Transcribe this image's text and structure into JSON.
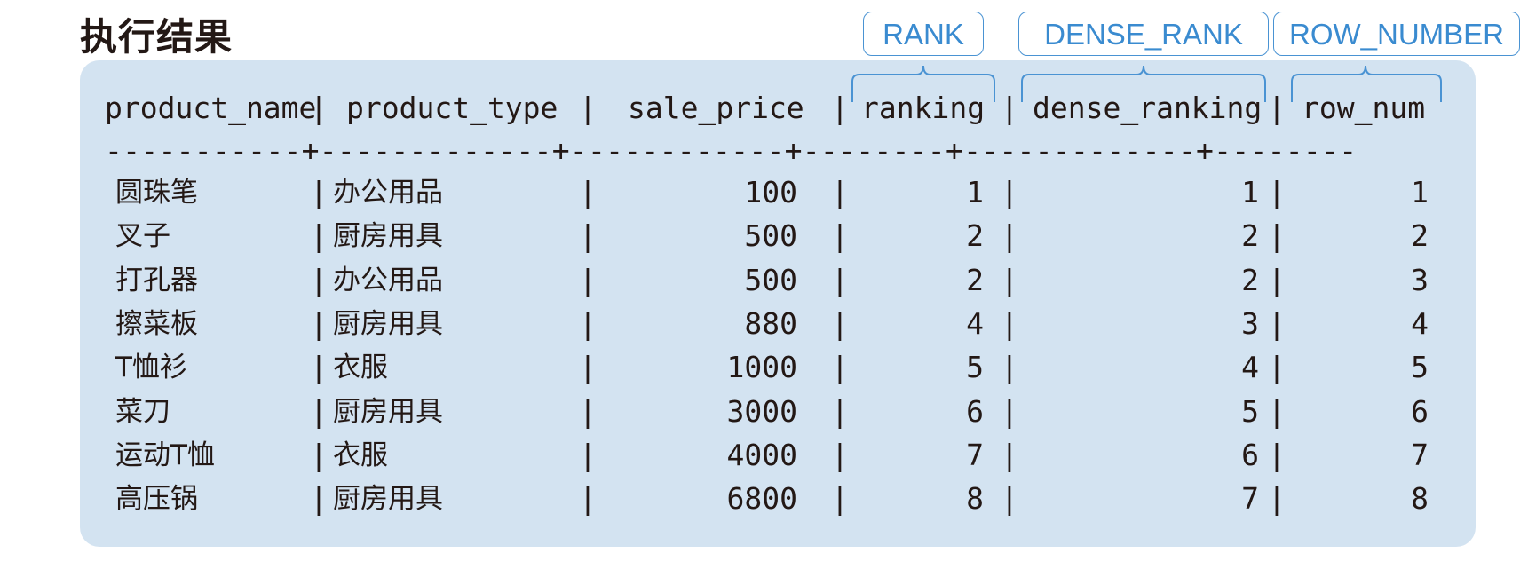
{
  "title": "执行结果",
  "callouts": [
    {
      "label": "RANK"
    },
    {
      "label": "DENSE_RANK"
    },
    {
      "label": "ROW_NUMBER"
    }
  ],
  "table": {
    "columns": [
      "product_name",
      "product_type",
      "sale_price",
      "ranking",
      "dense_ranking",
      "row_num"
    ],
    "separator": "-----------+-------------+------------+--------+-------------+--------",
    "rows": [
      [
        "圆珠笔",
        "办公用品",
        "100",
        "1",
        "1",
        "1"
      ],
      [
        "叉子",
        "厨房用具",
        "500",
        "2",
        "2",
        "2"
      ],
      [
        "打孔器",
        "办公用品",
        "500",
        "2",
        "2",
        "3"
      ],
      [
        "擦菜板",
        "厨房用具",
        "880",
        "4",
        "3",
        "4"
      ],
      [
        "T恤衫",
        "衣服",
        "1000",
        "5",
        "4",
        "5"
      ],
      [
        "菜刀",
        "厨房用具",
        "3000",
        "6",
        "5",
        "6"
      ],
      [
        "运动T恤",
        "衣服",
        "4000",
        "7",
        "6",
        "7"
      ],
      [
        "高压锅",
        "厨房用具",
        "6800",
        "8",
        "7",
        "8"
      ]
    ]
  },
  "colors": {
    "panel": "#d3e3f1",
    "accent": "#3a8bd0",
    "text": "#231815"
  }
}
